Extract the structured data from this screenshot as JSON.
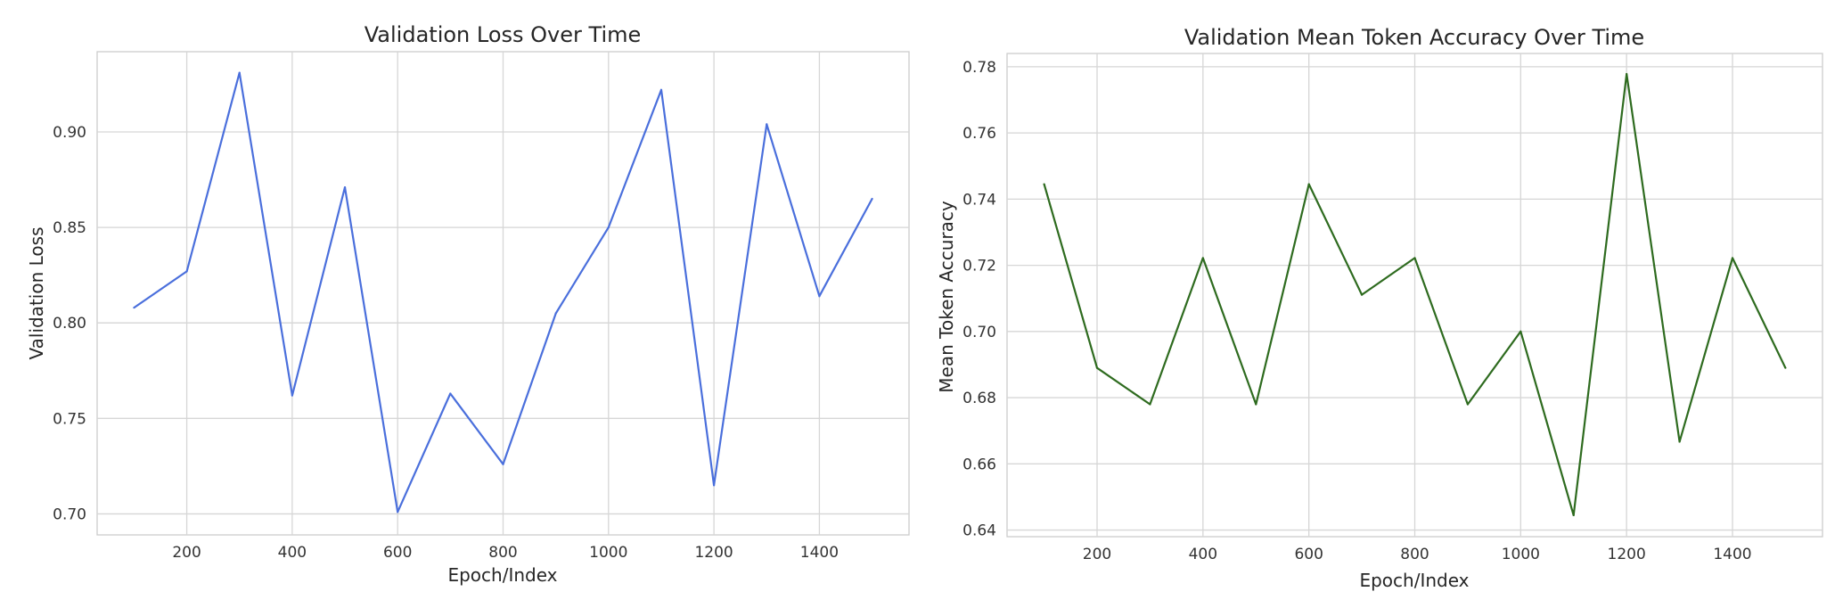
{
  "chart_data": [
    {
      "type": "line",
      "title": "Validation Loss Over Time",
      "xlabel": "Epoch/Index",
      "ylabel": "Validation Loss",
      "x": [
        100,
        200,
        300,
        400,
        500,
        600,
        700,
        800,
        900,
        1000,
        1100,
        1200,
        1300,
        1400,
        1500
      ],
      "series": [
        {
          "color": "#4a6fdc",
          "values": [
            0.808,
            0.827,
            0.931,
            0.762,
            0.871,
            0.701,
            0.763,
            0.726,
            0.805,
            0.85,
            0.922,
            0.715,
            0.904,
            0.814,
            0.865
          ]
        }
      ],
      "xlim": [
        30,
        1570
      ],
      "ylim": [
        0.689,
        0.942
      ],
      "xticks": [
        200,
        400,
        600,
        800,
        1000,
        1200,
        1400
      ],
      "xtick_labels": [
        "200",
        "400",
        "600",
        "800",
        "1000",
        "1200",
        "1400"
      ],
      "yticks": [
        0.7,
        0.75,
        0.8,
        0.85,
        0.9
      ],
      "ytick_labels": [
        "0.70",
        "0.75",
        "0.80",
        "0.85",
        "0.90"
      ],
      "grid": true
    },
    {
      "type": "line",
      "title": "Validation Mean Token Accuracy Over Time",
      "xlabel": "Epoch/Index",
      "ylabel": "Mean Token Accuracy",
      "x": [
        100,
        200,
        300,
        400,
        500,
        600,
        700,
        800,
        900,
        1000,
        1100,
        1200,
        1300,
        1400,
        1500
      ],
      "series": [
        {
          "color": "#2e6b1f",
          "values": [
            0.7445,
            0.689,
            0.678,
            0.7222,
            0.678,
            0.7445,
            0.7111,
            0.7222,
            0.678,
            0.7,
            0.6445,
            0.7778,
            0.6667,
            0.7222,
            0.689
          ]
        }
      ],
      "xlim": [
        30,
        1570
      ],
      "ylim": [
        0.638,
        0.784
      ],
      "xticks": [
        200,
        400,
        600,
        800,
        1000,
        1200,
        1400
      ],
      "xtick_labels": [
        "200",
        "400",
        "600",
        "800",
        "1000",
        "1200",
        "1400"
      ],
      "yticks": [
        0.64,
        0.66,
        0.68,
        0.7,
        0.72,
        0.74,
        0.76,
        0.78
      ],
      "ytick_labels": [
        "0.64",
        "0.66",
        "0.68",
        "0.70",
        "0.72",
        "0.74",
        "0.76",
        "0.78"
      ],
      "grid": true
    }
  ]
}
